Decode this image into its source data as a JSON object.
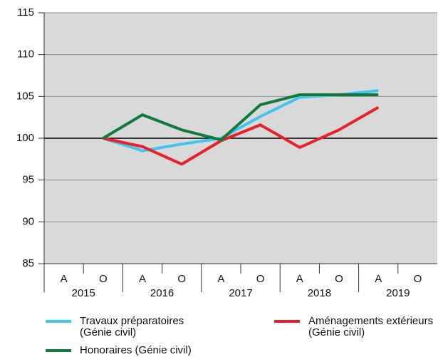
{
  "chart_data": {
    "type": "line",
    "categories": [
      "A",
      "O",
      "A",
      "O",
      "A",
      "O",
      "A",
      "O",
      "A",
      "O"
    ],
    "groups": [
      "2015",
      "2016",
      "2017",
      "2018",
      "2019"
    ],
    "series": [
      {
        "name": "Travaux préparatoires (Génie civil)",
        "color": "#41c4f0",
        "values": [
          null,
          100,
          98.5,
          99.3,
          100,
          102.6,
          104.9,
          105.2,
          105.7,
          null
        ]
      },
      {
        "name": "Aménagements extérieurs (Génie civil)",
        "color": "#e8202a",
        "values": [
          null,
          100,
          99,
          96.9,
          99.7,
          101.6,
          98.9,
          101,
          103.7,
          null
        ]
      },
      {
        "name": "Honoraires (Génie civil)",
        "color": "#117a3a",
        "values": [
          null,
          100,
          102.8,
          101,
          99.8,
          104,
          105.2,
          105.2,
          105.2,
          null
        ]
      }
    ],
    "ylim": [
      85,
      115
    ],
    "yticks": [
      85,
      90,
      95,
      100,
      105,
      110,
      115
    ],
    "grid": true,
    "reference_line": 100
  }
}
